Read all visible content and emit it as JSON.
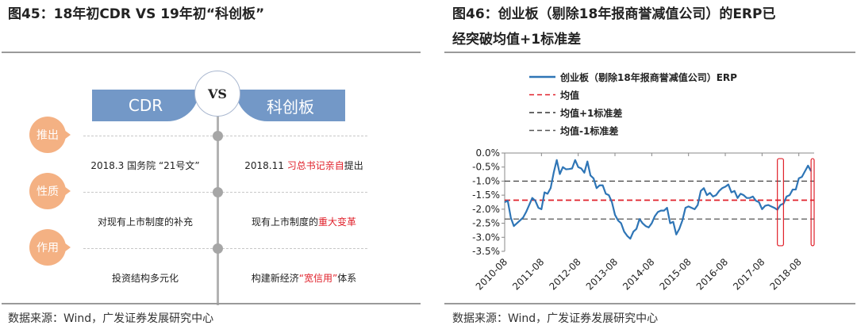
{
  "left": {
    "title": "图45：18年初CDR VS 19年初“科创板”",
    "source": "数据来源：Wind，广发证券发展研究中心",
    "left_header": "CDR",
    "vs": "VS",
    "right_header": "科创板",
    "rows": [
      {
        "label": "推出",
        "left": "2018.3 国务院 “21号文”",
        "right_pre": "2018.11 ",
        "right_hl": "习总书记亲自",
        "right_post": "提出"
      },
      {
        "label": "性质",
        "left": "对现有上市制度的补充",
        "right_pre": "现有上市制度的",
        "right_hl": "重大变革",
        "right_post": ""
      },
      {
        "label": "作用",
        "left": "投资结构多元化",
        "right_pre": "构建新经济",
        "right_hl": "“宽信用”",
        "right_post": "体系"
      }
    ],
    "colors": {
      "banner": "#7398c7",
      "bubble": "#f4b183",
      "highlight": "#e0202a"
    }
  },
  "right": {
    "title_line1": "图46：创业板（剔除18年报商誉减值公司）的ERP已",
    "title_line2": "经突破均值+1标准差",
    "source": "数据来源：Wind，广发证券发展研究中心"
  },
  "chart_data": {
    "type": "line",
    "legend": [
      "创业板（剔除18年报商誉减值公司）ERP",
      "均值",
      "均值+1标准差",
      "均值-1标准差"
    ],
    "legend_placement": "top",
    "yticks": [
      "0.0%",
      "-0.5%",
      "-1.0%",
      "-1.5%",
      "-2.0%",
      "-2.5%",
      "-3.0%",
      "-3.5%"
    ],
    "ylim": [
      -3.5,
      0
    ],
    "xticks": [
      "2010-08",
      "2011-08",
      "2012-08",
      "2013-08",
      "2014-08",
      "2015-08",
      "2016-08",
      "2017-08",
      "2018-08"
    ],
    "x_start": "2010-08",
    "x_end": "2019-01",
    "series": [
      {
        "name": "创业板（剔除18年报商誉减值公司）ERP",
        "color": "#2e75b6",
        "unit": "%",
        "values": [
          -1.75,
          -1.7,
          -2.3,
          -2.6,
          -2.5,
          -2.4,
          -2.3,
          -2.1,
          -1.85,
          -1.6,
          -1.7,
          -1.95,
          -2.0,
          -1.4,
          -1.45,
          -1.25,
          -0.7,
          -0.25,
          -0.75,
          -0.5,
          -0.58,
          -0.57,
          -0.55,
          -0.25,
          -0.5,
          -0.55,
          -0.7,
          -0.3,
          -0.8,
          -0.9,
          -1.25,
          -1.15,
          -1.15,
          -1.45,
          -1.5,
          -1.75,
          -2.2,
          -2.4,
          -2.5,
          -2.8,
          -2.95,
          -3.05,
          -2.8,
          -2.7,
          -2.35,
          -2.5,
          -2.6,
          -2.65,
          -2.5,
          -2.25,
          -2.1,
          -2.05,
          -2.05,
          -1.95,
          -2.5,
          -2.45,
          -2.9,
          -2.7,
          -2.4,
          -1.95,
          -1.9,
          -1.95,
          -2.0,
          -1.85,
          -1.35,
          -1.25,
          -1.5,
          -1.42,
          -1.55,
          -1.5,
          -1.35,
          -1.25,
          -1.2,
          -1.12,
          -1.4,
          -1.35,
          -1.6,
          -1.45,
          -1.5,
          -1.6,
          -1.6,
          -1.55,
          -1.7,
          -1.75,
          -2.0,
          -1.88,
          -1.85,
          -1.9,
          -1.95,
          -2.02,
          -1.85,
          -1.8,
          -1.55,
          -1.5,
          -1.3,
          -1.3,
          -0.9,
          -0.85,
          -0.65,
          -0.45,
          -0.65
        ]
      }
    ],
    "reference_lines": [
      {
        "name": "均值",
        "value": -1.68,
        "color": "#e0202a"
      },
      {
        "name": "均值+1标准差",
        "value": -1.0,
        "color": "#333333"
      },
      {
        "name": "均值-1标准差",
        "value": -2.35,
        "color": "#555555"
      }
    ],
    "highlights": [
      {
        "x_from": "2018-01",
        "x_to": "2018-03",
        "color": "#e0202a"
      },
      {
        "x_from": "2018-12",
        "x_to": "2019-01",
        "color": "#e0202a"
      }
    ],
    "grid": false
  }
}
